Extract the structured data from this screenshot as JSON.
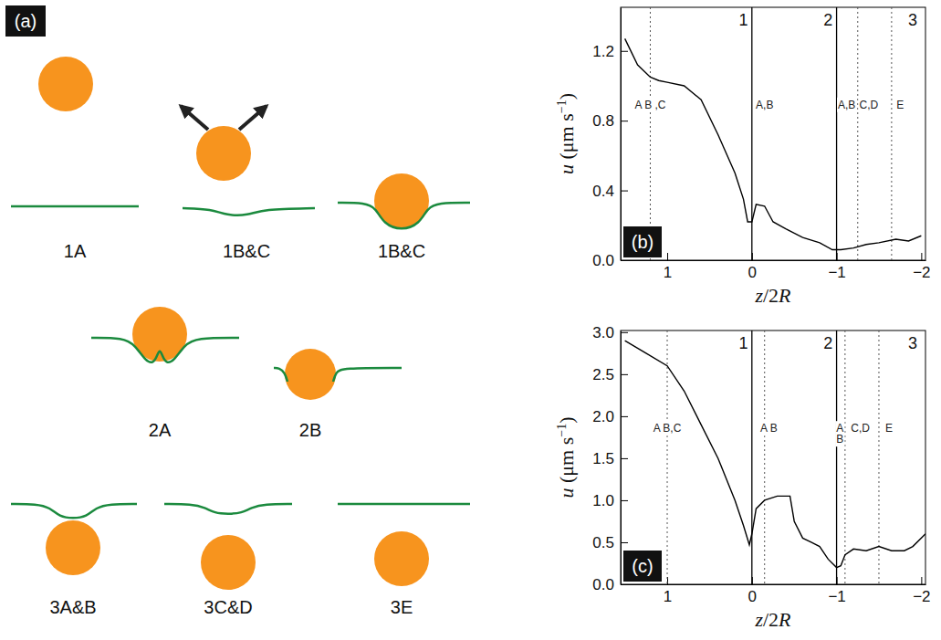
{
  "diagram": {
    "label": "(a)",
    "items": [
      {
        "label": "1A"
      },
      {
        "label": "1B&C"
      },
      {
        "label": "1B&C"
      },
      {
        "label": "2A"
      },
      {
        "label": "2B"
      },
      {
        "label": "3A&B"
      },
      {
        "label": "3C&D"
      },
      {
        "label": "3E"
      }
    ]
  },
  "chart_data": [
    {
      "type": "line",
      "panel_label": "(b)",
      "color": "#000000",
      "x_label": [
        "z",
        "/2",
        "R"
      ],
      "y_label": [
        "u",
        " (μm s",
        "−1",
        ")"
      ],
      "xlim": [
        1.55,
        -2.05
      ],
      "ylim": [
        0,
        1.45
      ],
      "xticks": [
        1,
        0,
        {
          "value": -1,
          "label": "−1"
        },
        {
          "value": -2,
          "label": "−2"
        }
      ],
      "yticks": [
        {
          "value": 0,
          "label": "0.0"
        },
        {
          "value": 0.4,
          "label": "0.4"
        },
        {
          "value": 0.8,
          "label": "0.8"
        },
        {
          "value": 1.2,
          "label": "1.2"
        }
      ],
      "x": [
        1.5,
        1.35,
        1.2,
        1.1,
        1.0,
        0.8,
        0.6,
        0.4,
        0.2,
        0.1,
        0.05,
        0.0,
        -0.05,
        -0.15,
        -0.25,
        -0.4,
        -0.6,
        -0.8,
        -0.95,
        -1.05,
        -1.2,
        -1.35,
        -1.5,
        -1.7,
        -1.85,
        -2.0
      ],
      "values": [
        1.27,
        1.12,
        1.05,
        1.03,
        1.02,
        1.0,
        0.92,
        0.72,
        0.5,
        0.35,
        0.22,
        0.22,
        0.32,
        0.31,
        0.22,
        0.18,
        0.13,
        0.1,
        0.06,
        0.06,
        0.07,
        0.09,
        0.1,
        0.12,
        0.11,
        0.14
      ],
      "vlines": [
        {
          "x": 1.2,
          "line_style": "dotted"
        },
        {
          "x": 0,
          "line_style": "solid"
        },
        {
          "x": -1,
          "line_style": "solid"
        },
        {
          "x": -1.25,
          "line_style": "dotted"
        },
        {
          "x": -1.65,
          "line_style": "dotted"
        }
      ],
      "regions": [
        {
          "x": 0.1,
          "text": "1"
        },
        {
          "x": -0.9,
          "text": "2"
        },
        {
          "x": -1.9,
          "text": "3"
        }
      ],
      "annotations": [
        {
          "x": 1.2,
          "lines": [
            "A B ,C"
          ]
        },
        {
          "x": -0.15,
          "lines": [
            "A,B"
          ]
        },
        {
          "x": -1.12,
          "lines": [
            "A,B"
          ]
        },
        {
          "x": -1.38,
          "lines": [
            "C,D"
          ]
        },
        {
          "x": -1.75,
          "lines": [
            "E"
          ]
        }
      ]
    },
    {
      "type": "line",
      "panel_label": "(c)",
      "color": "#000000",
      "x_label": [
        "z",
        "/2",
        "R"
      ],
      "y_label": [
        "u",
        " (μm s",
        "−1",
        ")"
      ],
      "xlim": [
        1.55,
        -2.05
      ],
      "ylim": [
        0,
        3.02
      ],
      "xticks": [
        1,
        0,
        {
          "value": -1,
          "label": "−1"
        },
        {
          "value": -2,
          "label": "−2"
        }
      ],
      "yticks": [
        {
          "value": 0,
          "label": "0.0"
        },
        {
          "value": 0.5,
          "label": "0.5"
        },
        {
          "value": 1,
          "label": "1.0"
        },
        {
          "value": 1.5,
          "label": "1.5"
        },
        {
          "value": 2,
          "label": "2.0"
        },
        {
          "value": 2.5,
          "label": "2.5"
        },
        {
          "value": 3,
          "label": "3.0"
        }
      ],
      "x": [
        1.5,
        1.25,
        1.0,
        0.8,
        0.6,
        0.4,
        0.2,
        0.1,
        0.03,
        0.0,
        -0.05,
        -0.15,
        -0.3,
        -0.45,
        -0.5,
        -0.6,
        -0.7,
        -0.8,
        -0.9,
        -1.0,
        -1.05,
        -1.1,
        -1.2,
        -1.35,
        -1.5,
        -1.65,
        -1.8,
        -1.9,
        -2.05
      ],
      "values": [
        2.9,
        2.75,
        2.6,
        2.3,
        1.9,
        1.5,
        1.0,
        0.7,
        0.47,
        0.6,
        0.9,
        1.0,
        1.05,
        1.05,
        0.75,
        0.55,
        0.5,
        0.45,
        0.3,
        0.2,
        0.22,
        0.35,
        0.42,
        0.4,
        0.45,
        0.4,
        0.4,
        0.45,
        0.6
      ],
      "vlines": [
        {
          "x": 1.0,
          "line_style": "dotted"
        },
        {
          "x": -0.15,
          "line_style": "dotted"
        },
        {
          "x": 0,
          "line_style": "solid"
        },
        {
          "x": -1,
          "line_style": "solid"
        },
        {
          "x": -1.1,
          "line_style": "dotted"
        },
        {
          "x": -1.5,
          "line_style": "dotted"
        }
      ],
      "regions": [
        {
          "x": 0.1,
          "text": "1"
        },
        {
          "x": -0.9,
          "text": "2"
        },
        {
          "x": -1.9,
          "text": "3"
        }
      ],
      "annotations": [
        {
          "x": 1.0,
          "lines": [
            "A B,C"
          ]
        },
        {
          "x": -0.2,
          "lines": [
            "A B"
          ]
        },
        {
          "x": -1.04,
          "lines": [
            "A",
            "B"
          ]
        },
        {
          "x": -1.28,
          "lines": [
            "C,D"
          ]
        },
        {
          "x": -1.62,
          "lines": [
            "E"
          ]
        }
      ]
    }
  ]
}
